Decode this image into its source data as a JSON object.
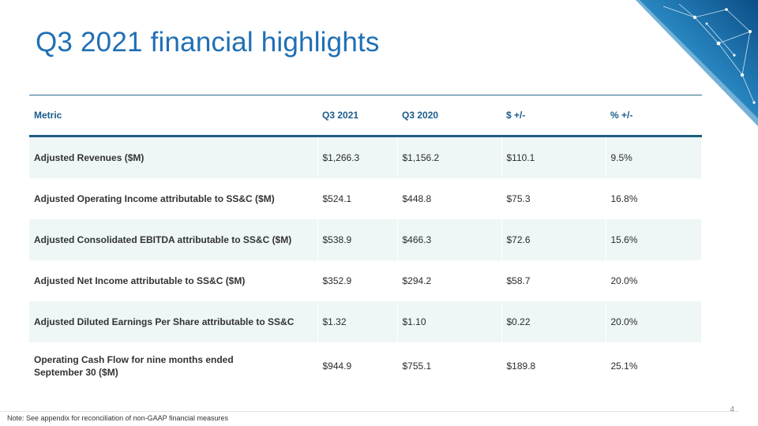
{
  "slide": {
    "title": "Q3 2021 financial highlights",
    "page_number": "4",
    "note": "Note: See appendix for reconciliation of non-GAAP financial measures"
  },
  "table": {
    "headers": [
      "Metric",
      "Q3 2021",
      "Q3 2020",
      "$ +/-",
      "% +/-"
    ],
    "rows": [
      {
        "metric": "Adjusted Revenues ($M)",
        "q3_2021": "$1,266.3",
        "q3_2020": "$1,156.2",
        "change_dollar": "$110.1",
        "change_pct": "9.5%"
      },
      {
        "metric": "Adjusted Operating Income attributable to SS&C ($M)",
        "q3_2021": "$524.1",
        "q3_2020": "$448.8",
        "change_dollar": "$75.3",
        "change_pct": "16.8%"
      },
      {
        "metric": "Adjusted Consolidated EBITDA attributable to SS&C ($M)",
        "q3_2021": "$538.9",
        "q3_2020": "$466.3",
        "change_dollar": "$72.6",
        "change_pct": "15.6%"
      },
      {
        "metric": "Adjusted Net Income attributable to SS&C ($M)",
        "q3_2021": "$352.9",
        "q3_2020": "$294.2",
        "change_dollar": "$58.7",
        "change_pct": "20.0%"
      },
      {
        "metric": "Adjusted Diluted Earnings Per Share attributable to SS&C",
        "q3_2021": "$1.32",
        "q3_2020": "$1.10",
        "change_dollar": "$0.22",
        "change_pct": "20.0%"
      },
      {
        "metric_line1": "Operating Cash Flow for nine months ended",
        "metric_line2": "September 30 ($M)",
        "q3_2021": "$944.9",
        "q3_2020": "$755.1",
        "change_dollar": "$189.8",
        "change_pct": "25.1%"
      }
    ]
  },
  "colors": {
    "title": "#1f6fb5",
    "header_text": "#1a5c8c",
    "header_rule": "#1e5f80",
    "row_shade": "#eef6f6"
  },
  "icons": {
    "corner_decoration": "network-graphic-icon"
  }
}
